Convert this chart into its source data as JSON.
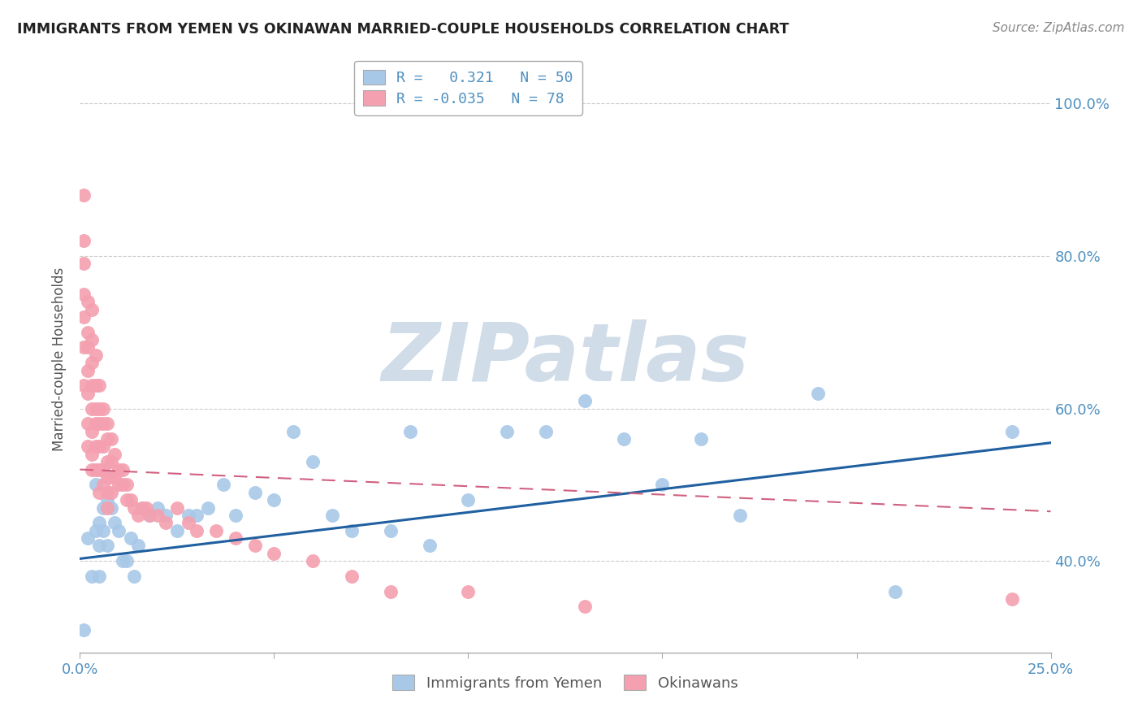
{
  "title": "IMMIGRANTS FROM YEMEN VS OKINAWAN MARRIED-COUPLE HOUSEHOLDS CORRELATION CHART",
  "source": "Source: ZipAtlas.com",
  "ylabel": "Married-couple Households",
  "legend_entry1": "R =   0.321   N = 50",
  "legend_entry2": "R = -0.035   N = 78",
  "legend_label1": "Immigrants from Yemen",
  "legend_label2": "Okinawans",
  "blue_color": "#a8c8e8",
  "pink_color": "#f4a0b0",
  "line_blue": "#2060a0",
  "line_pink": "#d06080",
  "watermark": "ZIPatlas",
  "watermark_color": "#d0dce8",
  "xlim": [
    0.0,
    0.25
  ],
  "ylim": [
    0.28,
    1.05
  ],
  "blue_scatter_x": [
    0.001,
    0.002,
    0.003,
    0.004,
    0.004,
    0.005,
    0.005,
    0.005,
    0.006,
    0.006,
    0.007,
    0.007,
    0.008,
    0.009,
    0.01,
    0.011,
    0.012,
    0.013,
    0.014,
    0.015,
    0.016,
    0.018,
    0.02,
    0.022,
    0.025,
    0.028,
    0.03,
    0.033,
    0.037,
    0.04,
    0.045,
    0.05,
    0.055,
    0.06,
    0.065,
    0.07,
    0.08,
    0.085,
    0.09,
    0.1,
    0.11,
    0.12,
    0.13,
    0.14,
    0.15,
    0.16,
    0.17,
    0.19,
    0.21,
    0.24
  ],
  "blue_scatter_y": [
    0.31,
    0.43,
    0.38,
    0.44,
    0.5,
    0.42,
    0.38,
    0.45,
    0.44,
    0.47,
    0.42,
    0.48,
    0.47,
    0.45,
    0.44,
    0.4,
    0.4,
    0.43,
    0.38,
    0.42,
    0.47,
    0.46,
    0.47,
    0.46,
    0.44,
    0.46,
    0.46,
    0.47,
    0.5,
    0.46,
    0.49,
    0.48,
    0.57,
    0.53,
    0.46,
    0.44,
    0.44,
    0.57,
    0.42,
    0.48,
    0.57,
    0.57,
    0.61,
    0.56,
    0.5,
    0.56,
    0.46,
    0.62,
    0.36,
    0.57
  ],
  "pink_scatter_x": [
    0.001,
    0.001,
    0.001,
    0.001,
    0.001,
    0.001,
    0.001,
    0.002,
    0.002,
    0.002,
    0.002,
    0.002,
    0.002,
    0.002,
    0.003,
    0.003,
    0.003,
    0.003,
    0.003,
    0.003,
    0.003,
    0.003,
    0.004,
    0.004,
    0.004,
    0.004,
    0.004,
    0.004,
    0.005,
    0.005,
    0.005,
    0.005,
    0.005,
    0.005,
    0.006,
    0.006,
    0.006,
    0.006,
    0.006,
    0.007,
    0.007,
    0.007,
    0.007,
    0.007,
    0.007,
    0.008,
    0.008,
    0.008,
    0.008,
    0.009,
    0.009,
    0.01,
    0.01,
    0.011,
    0.011,
    0.012,
    0.012,
    0.013,
    0.014,
    0.015,
    0.016,
    0.017,
    0.018,
    0.02,
    0.022,
    0.025,
    0.028,
    0.03,
    0.035,
    0.04,
    0.045,
    0.05,
    0.06,
    0.07,
    0.08,
    0.1,
    0.13,
    0.24
  ],
  "pink_scatter_y": [
    0.88,
    0.82,
    0.79,
    0.75,
    0.72,
    0.68,
    0.63,
    0.74,
    0.7,
    0.68,
    0.65,
    0.62,
    0.58,
    0.55,
    0.73,
    0.69,
    0.66,
    0.63,
    0.6,
    0.57,
    0.54,
    0.52,
    0.67,
    0.63,
    0.6,
    0.58,
    0.55,
    0.52,
    0.63,
    0.6,
    0.58,
    0.55,
    0.52,
    0.49,
    0.6,
    0.58,
    0.55,
    0.52,
    0.5,
    0.58,
    0.56,
    0.53,
    0.51,
    0.49,
    0.47,
    0.56,
    0.53,
    0.51,
    0.49,
    0.54,
    0.51,
    0.52,
    0.5,
    0.52,
    0.5,
    0.5,
    0.48,
    0.48,
    0.47,
    0.46,
    0.47,
    0.47,
    0.46,
    0.46,
    0.45,
    0.47,
    0.45,
    0.44,
    0.44,
    0.43,
    0.42,
    0.41,
    0.4,
    0.38,
    0.36,
    0.36,
    0.34,
    0.35
  ],
  "blue_line_x": [
    0.0,
    0.25
  ],
  "blue_line_y": [
    0.403,
    0.555
  ],
  "pink_line_x": [
    0.0,
    0.25
  ],
  "pink_line_y": [
    0.52,
    0.465
  ],
  "ytick_vals": [
    0.4,
    0.6,
    0.8,
    1.0
  ],
  "ytick_labels": [
    "40.0%",
    "60.0%",
    "80.0%",
    "100.0%"
  ],
  "xtick_vals": [
    0.0,
    0.05,
    0.1,
    0.15,
    0.2,
    0.25
  ],
  "xtick_labels": [
    "0.0%",
    "",
    "",
    "",
    "",
    "25.0%"
  ],
  "tick_color": "#5090c0",
  "grid_color": "#cccccc",
  "spine_color": "#aaaaaa"
}
